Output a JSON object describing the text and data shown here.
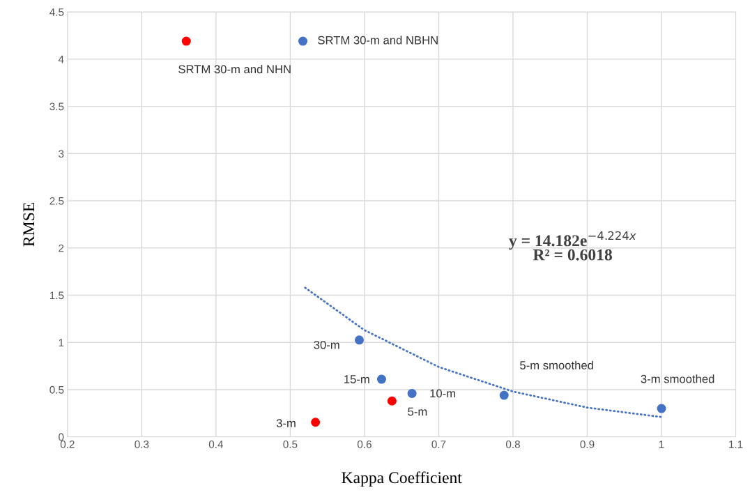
{
  "chart_data": {
    "type": "scatter",
    "xlabel": "Kappa Coefficient",
    "ylabel": "RMSE",
    "xlim": [
      0.2,
      1.1
    ],
    "xticks": [
      0.2,
      0.3,
      0.4,
      0.5,
      0.6,
      0.7,
      0.8,
      0.9,
      1,
      1.1
    ],
    "ylim": [
      0,
      4.5
    ],
    "yticks": [
      0,
      0.5,
      1,
      1.5,
      2,
      2.5,
      3,
      3.5,
      4,
      4.5
    ],
    "grid": true,
    "series": [
      {
        "marker": "circle",
        "color": "#ff0000",
        "x": [
          0.36,
          0.637,
          0.534
        ],
        "values": [
          4.19,
          0.38,
          0.155
        ]
      },
      {
        "marker": "circle",
        "color": "#4472c4",
        "x": [
          0.517,
          0.593,
          0.623,
          0.664,
          0.788,
          1.0
        ],
        "values": [
          4.19,
          1.025,
          0.61,
          0.46,
          0.44,
          0.3
        ]
      },
      {
        "type": "line",
        "color": "#4472c4",
        "line_style": "dotted",
        "x": [
          0.52,
          0.6,
          0.7,
          0.8,
          0.9,
          1.0
        ],
        "values": [
          1.58,
          1.13,
          0.74,
          0.48,
          0.31,
          0.21
        ]
      }
    ],
    "annotations": [
      {
        "text": "SRTM 30-m and NHN",
        "x": 0.36,
        "y": 4.19
      },
      {
        "text": "SRTM 30-m and NBHN",
        "x": 0.517,
        "y": 4.19
      },
      {
        "text": "30-m",
        "x": 0.593,
        "y": 1.025
      },
      {
        "text": "15-m",
        "x": 0.623,
        "y": 0.61
      },
      {
        "text": "10-m",
        "x": 0.664,
        "y": 0.46
      },
      {
        "text": "5-m",
        "x": 0.637,
        "y": 0.38
      },
      {
        "text": "3-m",
        "x": 0.534,
        "y": 0.155
      },
      {
        "text": "5-m smoothed",
        "x": 0.788,
        "y": 0.44
      },
      "y = 14.182e$^{−4.224x}$",
      "R² = 0.6018",
      "3-m smoothed"
    ]
  }
}
